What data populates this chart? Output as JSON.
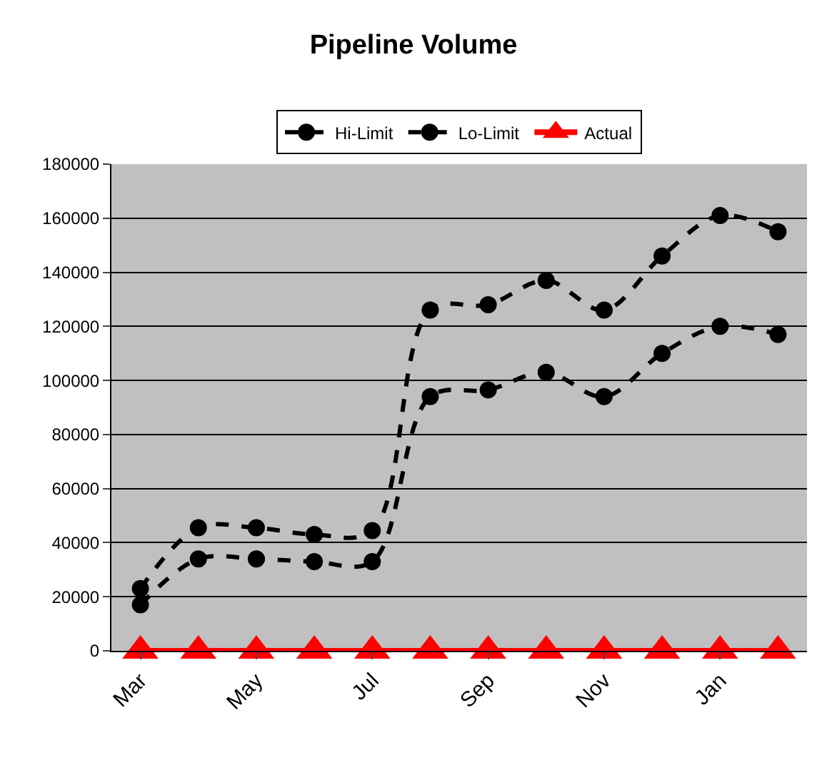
{
  "chart_data": {
    "type": "line",
    "title": "Pipeline Volume",
    "categories": [
      "Mar",
      null,
      "May",
      null,
      "Jul",
      null,
      "Sep",
      null,
      "Nov",
      null,
      "Jan",
      null
    ],
    "series": [
      {
        "name": "Hi-Limit",
        "color": "#000000",
        "marker": "circle",
        "line_style": "dashed",
        "values": [
          23000,
          45500,
          45500,
          43000,
          44500,
          126000,
          128000,
          137000,
          126000,
          146000,
          161000,
          155000
        ]
      },
      {
        "name": "Lo-Limit",
        "color": "#000000",
        "marker": "circle",
        "line_style": "dashed",
        "values": [
          17000,
          34000,
          34000,
          33000,
          33000,
          94000,
          96500,
          103000,
          94000,
          110000,
          120000,
          117000
        ]
      },
      {
        "name": "Actual",
        "color": "#ff0000",
        "marker": "triangle",
        "line_style": "solid",
        "values": [
          0,
          0,
          0,
          0,
          0,
          0,
          0,
          0,
          0,
          0,
          0,
          0
        ]
      }
    ],
    "ylim": [
      0,
      180000
    ],
    "yticks": [
      0,
      20000,
      40000,
      60000,
      80000,
      100000,
      120000,
      140000,
      160000,
      180000
    ],
    "grid": "y",
    "legend": "top"
  }
}
